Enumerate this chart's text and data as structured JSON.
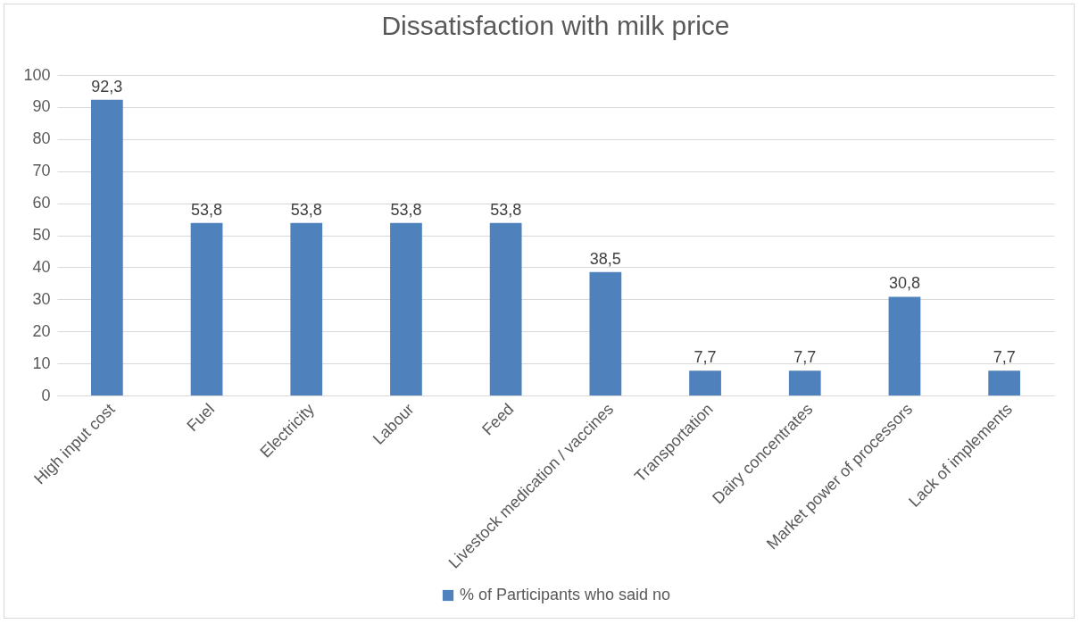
{
  "chart_data": {
    "type": "bar",
    "title": "Dissatisfaction with milk price",
    "categories": [
      "High input cost",
      "Fuel",
      "Electricity",
      "Labour",
      "Feed",
      "Livestock medication / vaccines",
      "Transportation",
      "Dairy concentrates",
      "Market power of processors",
      "Lack of implements"
    ],
    "series": [
      {
        "name": "% of Participants who said no",
        "color": "#4f81bd",
        "values": [
          92.3,
          53.8,
          53.8,
          53.8,
          53.8,
          38.5,
          7.7,
          7.7,
          30.8,
          7.7
        ],
        "value_labels": [
          "92,3",
          "53,8",
          "53,8",
          "53,8",
          "53,8",
          "38,5",
          "7,7",
          "7,7",
          "30,8",
          "7,7"
        ]
      }
    ],
    "ylim": [
      0,
      100
    ],
    "yticks": [
      0,
      10,
      20,
      30,
      40,
      50,
      60,
      70,
      80,
      90,
      100
    ],
    "grid": "y",
    "legend": "bottom"
  }
}
